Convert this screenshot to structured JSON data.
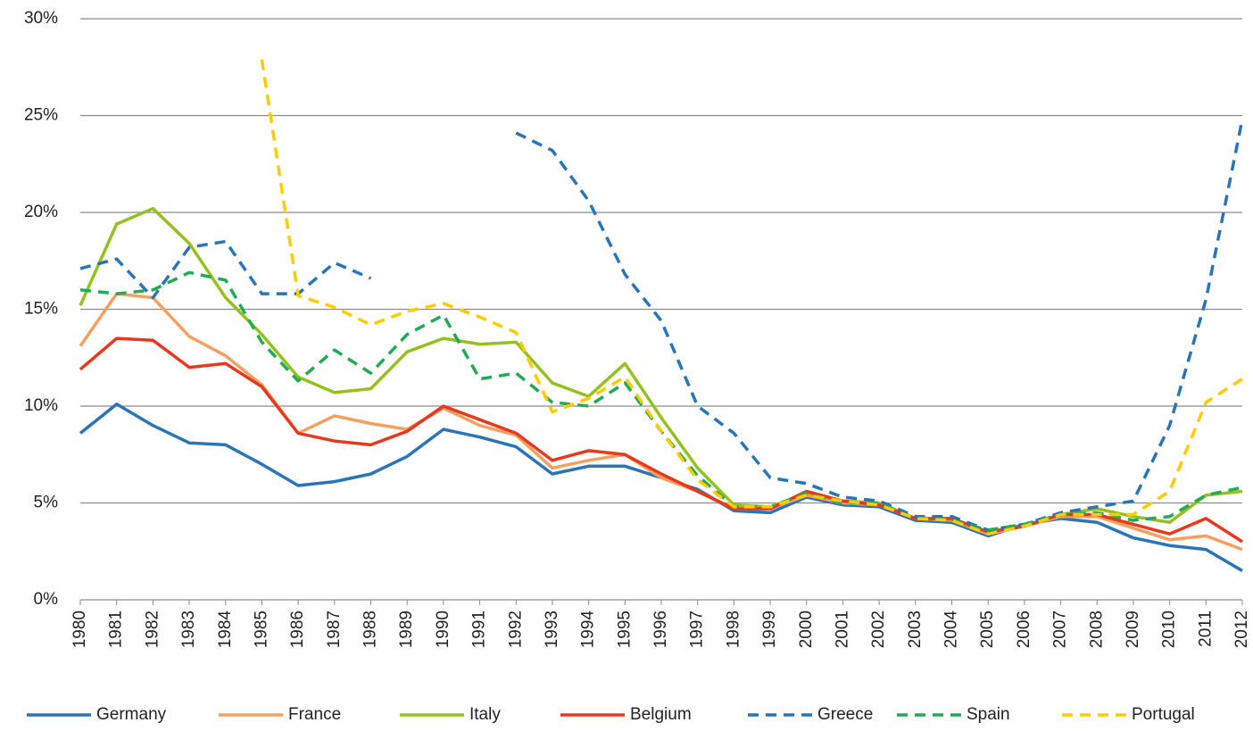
{
  "chart_data": {
    "type": "line",
    "categories": [
      "1980",
      "1981",
      "1982",
      "1983",
      "1984",
      "1985",
      "1986",
      "1987",
      "1988",
      "1989",
      "1990",
      "1991",
      "1992",
      "1993",
      "1994",
      "1995",
      "1996",
      "1997",
      "1998",
      "1999",
      "2000",
      "2001",
      "2002",
      "2003",
      "2004",
      "2005",
      "2006",
      "2007",
      "2008",
      "2009",
      "2010",
      "2011",
      "2012"
    ],
    "ylim": [
      0,
      30
    ],
    "yticks": [
      {
        "value": 0,
        "label": "0%"
      },
      {
        "value": 5,
        "label": "5%"
      },
      {
        "value": 10,
        "label": "10%"
      },
      {
        "value": 15,
        "label": "15%"
      },
      {
        "value": 20,
        "label": "20%"
      },
      {
        "value": 25,
        "label": "25%"
      },
      {
        "value": 30,
        "label": "30%"
      }
    ],
    "grid": true,
    "legend": "bottom",
    "series": [
      {
        "name": "Germany",
        "color": "#2a74b8",
        "dashed": false,
        "values": [
          8.6,
          10.1,
          9.0,
          8.1,
          8.0,
          7.0,
          5.9,
          6.1,
          6.5,
          7.4,
          8.8,
          8.4,
          7.9,
          6.5,
          6.9,
          6.9,
          6.3,
          5.7,
          4.6,
          4.5,
          5.3,
          4.9,
          4.8,
          4.1,
          4.0,
          3.3,
          3.9,
          4.2,
          4.0,
          3.2,
          2.8,
          2.6,
          1.5
        ]
      },
      {
        "name": "France",
        "color": "#f5a05e",
        "dashed": false,
        "values": [
          13.1,
          15.8,
          15.6,
          13.6,
          12.6,
          11.1,
          8.6,
          9.5,
          9.1,
          8.8,
          9.9,
          9.0,
          8.5,
          6.8,
          7.2,
          7.5,
          6.3,
          5.6,
          4.7,
          4.7,
          5.4,
          5.0,
          4.9,
          4.2,
          4.1,
          3.4,
          3.8,
          4.3,
          4.3,
          3.7,
          3.1,
          3.3,
          2.6
        ]
      },
      {
        "name": "Italy",
        "color": "#95c11f",
        "dashed": false,
        "values": [
          15.2,
          19.4,
          20.2,
          18.4,
          15.6,
          13.7,
          11.5,
          10.7,
          10.9,
          12.8,
          13.5,
          13.2,
          13.3,
          11.2,
          10.5,
          12.2,
          9.4,
          6.8,
          4.9,
          4.8,
          5.5,
          5.1,
          5.0,
          4.2,
          4.1,
          3.5,
          3.8,
          4.4,
          4.7,
          4.3,
          4.0,
          5.4,
          5.6
        ]
      },
      {
        "name": "Belgium",
        "color": "#e8381e",
        "dashed": false,
        "values": [
          11.9,
          13.5,
          13.4,
          12.0,
          12.2,
          11.0,
          8.6,
          8.2,
          8.0,
          8.7,
          10.0,
          9.3,
          8.6,
          7.2,
          7.7,
          7.5,
          6.5,
          5.6,
          4.7,
          4.7,
          5.6,
          5.1,
          4.9,
          4.2,
          4.2,
          3.5,
          3.8,
          4.4,
          4.4,
          3.9,
          3.4,
          4.2,
          3.0
        ]
      },
      {
        "name": "Greece",
        "color": "#2a74b8",
        "dashed": true,
        "values": [
          17.1,
          17.6,
          15.6,
          18.2,
          18.5,
          15.8,
          15.8,
          17.4,
          16.6,
          null,
          null,
          null,
          24.1,
          23.2,
          20.6,
          16.8,
          14.4,
          10.0,
          8.6,
          6.3,
          6.0,
          5.3,
          5.1,
          4.3,
          4.3,
          3.6,
          3.9,
          4.5,
          4.8,
          5.1,
          9.0,
          15.5,
          24.8
        ]
      },
      {
        "name": "Spain",
        "color": "#22aa55",
        "dashed": true,
        "values": [
          16.0,
          15.8,
          16.0,
          16.9,
          16.5,
          13.3,
          11.3,
          12.9,
          11.7,
          13.7,
          14.7,
          11.4,
          11.7,
          10.2,
          10.0,
          11.2,
          8.7,
          6.4,
          4.8,
          4.8,
          5.5,
          5.0,
          5.0,
          4.2,
          4.1,
          3.6,
          3.9,
          4.4,
          4.5,
          4.1,
          4.3,
          5.4,
          5.8
        ]
      },
      {
        "name": "Portugal",
        "color": "#ffcc00",
        "dashed": true,
        "values": [
          null,
          null,
          null,
          null,
          null,
          27.9,
          15.7,
          15.1,
          14.2,
          14.9,
          15.3,
          14.6,
          13.8,
          9.7,
          10.4,
          11.5,
          8.7,
          6.2,
          4.8,
          4.8,
          5.4,
          5.1,
          4.9,
          4.2,
          4.1,
          3.4,
          3.8,
          4.4,
          4.4,
          4.4,
          5.6,
          10.2,
          11.4
        ]
      }
    ]
  }
}
